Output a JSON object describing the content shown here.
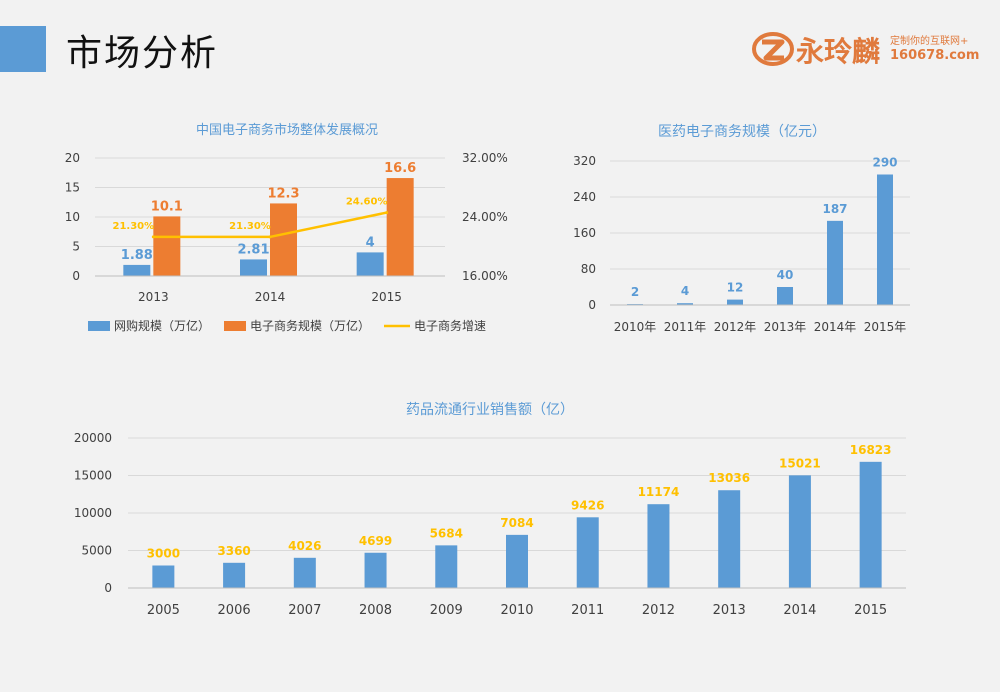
{
  "page": {
    "title": "市场分析"
  },
  "logo": {
    "name": "永玲麟",
    "tagline": "定制你的互联网+",
    "url": "160678.com"
  },
  "colors": {
    "blue": "#5b9bd5",
    "orange": "#ed7d31",
    "gold": "#ffc000",
    "title_blue": "#5b9bd5",
    "accent": "#5b9bd5"
  },
  "chart_data": [
    {
      "type": "bar",
      "title": "中国电子商务市场整体发展概况",
      "categories": [
        "2013",
        "2014",
        "2015"
      ],
      "series": [
        {
          "name": "网购规模（万亿）",
          "kind": "bar",
          "axis": "left",
          "values": [
            1.88,
            2.81,
            4
          ],
          "labels": [
            "1.88",
            "2.81",
            "4"
          ]
        },
        {
          "name": "电子商务规模（万亿）",
          "kind": "bar",
          "axis": "left",
          "values": [
            10.1,
            12.3,
            16.6
          ],
          "labels": [
            "10.1",
            "12.3",
            "16.6"
          ]
        },
        {
          "name": "电子商务增速",
          "kind": "line",
          "axis": "right",
          "values": [
            21.3,
            21.3,
            24.6
          ],
          "labels": [
            "21.30%",
            "21.30%",
            "24.60%"
          ]
        }
      ],
      "ylim": [
        0,
        20
      ],
      "yticks": [
        "0",
        "5",
        "10",
        "15",
        "20"
      ],
      "y2lim": [
        16,
        32
      ],
      "y2ticks": [
        "16.00%",
        "24.00%",
        "32.00%"
      ],
      "legend": "bottom"
    },
    {
      "type": "bar",
      "title": "医药电子商务规模（亿元）",
      "categories": [
        "2010年",
        "2011年",
        "2012年",
        "2013年",
        "2014年",
        "2015年"
      ],
      "values": [
        2,
        4,
        12,
        40,
        187,
        290
      ],
      "labels": [
        "2",
        "4",
        "12",
        "40",
        "187",
        "290"
      ],
      "ylim": [
        0,
        320
      ],
      "yticks": [
        "0",
        "80",
        "160",
        "240",
        "320"
      ]
    },
    {
      "type": "bar",
      "title": "药品流通行业销售额（亿）",
      "categories": [
        "2005",
        "2006",
        "2007",
        "2008",
        "2009",
        "2010",
        "2011",
        "2012",
        "2013",
        "2014",
        "2015"
      ],
      "values": [
        3000,
        3360,
        4026,
        4699,
        5684,
        7084,
        9426,
        11174,
        13036,
        15021,
        16823
      ],
      "labels": [
        "3000",
        "3360",
        "4026",
        "4699",
        "5684",
        "7084",
        "9426",
        "11174",
        "13036",
        "15021",
        "16823"
      ],
      "ylim": [
        0,
        20000
      ],
      "yticks": [
        "0",
        "5000",
        "10000",
        "15000",
        "20000"
      ]
    }
  ]
}
